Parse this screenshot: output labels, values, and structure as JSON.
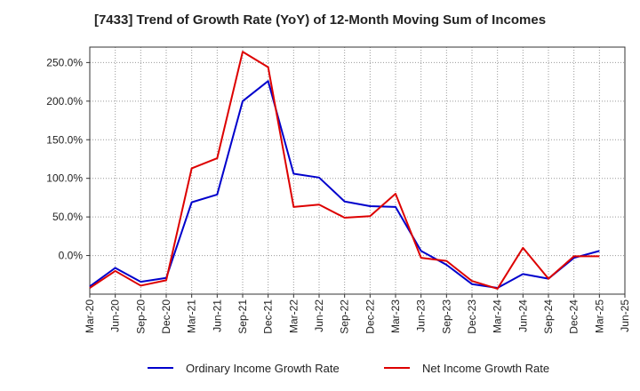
{
  "chart_data": {
    "type": "line",
    "title": "[7433]  Trend of Growth Rate (YoY) of 12-Month Moving Sum of Incomes",
    "xlabel": "",
    "ylabel": "",
    "ylim": [
      -50,
      270
    ],
    "yticks": [
      0,
      50,
      100,
      150,
      200,
      250
    ],
    "ytick_labels": [
      "0.0%",
      "50.0%",
      "100.0%",
      "150.0%",
      "200.0%",
      "250.0%"
    ],
    "xtick_labels": [
      "Mar-20",
      "Jun-20",
      "Sep-20",
      "Dec-20",
      "Mar-21",
      "Jun-21",
      "Sep-21",
      "Dec-21",
      "Mar-22",
      "Jun-22",
      "Sep-22",
      "Dec-22",
      "Mar-23",
      "Jun-23",
      "Sep-23",
      "Dec-23",
      "Mar-24",
      "Jun-24",
      "Sep-24",
      "Dec-24",
      "Mar-25",
      "Jun-25"
    ],
    "x": [
      "Mar-20",
      "Jun-20",
      "Sep-20",
      "Dec-20",
      "Mar-21",
      "Jun-21",
      "Sep-21",
      "Dec-21",
      "Mar-22",
      "Jun-22",
      "Sep-22",
      "Dec-22",
      "Mar-23",
      "Jun-23",
      "Sep-23",
      "Dec-23",
      "Mar-24",
      "Jun-24",
      "Sep-24",
      "Dec-24",
      "Mar-25"
    ],
    "grid": true,
    "legend_position": "bottom",
    "series": [
      {
        "name": "Ordinary Income Growth Rate",
        "color": "#0000cc",
        "values": [
          -40,
          -16,
          -34,
          -29,
          69,
          79,
          200,
          226,
          106,
          101,
          70,
          64,
          63,
          6,
          -12,
          -37,
          -42,
          -24,
          -30,
          -3,
          6
        ]
      },
      {
        "name": "Net Income Growth Rate",
        "color": "#dd0000",
        "values": [
          -42,
          -20,
          -39,
          -32,
          113,
          126,
          264,
          244,
          63,
          66,
          49,
          51,
          80,
          -3,
          -7,
          -33,
          -43,
          10,
          -30,
          -1,
          -1
        ]
      }
    ]
  }
}
